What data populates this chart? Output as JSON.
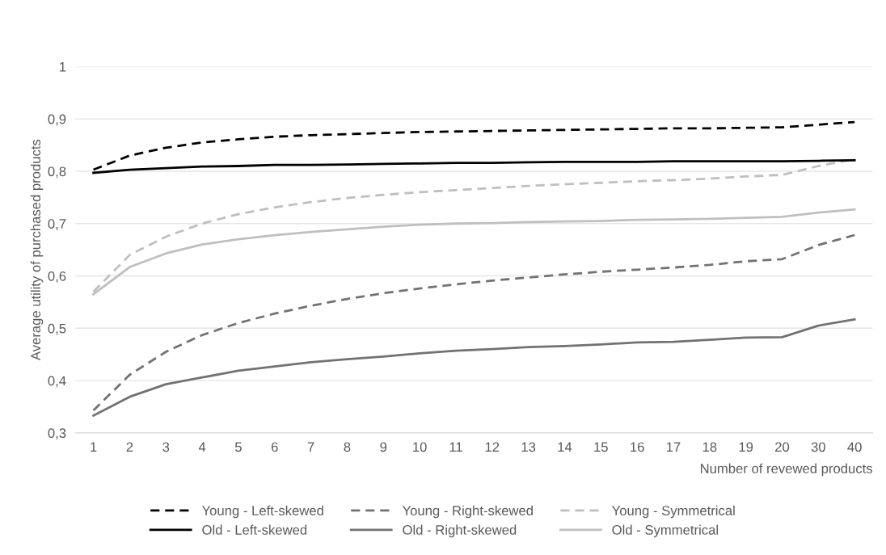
{
  "chart_data": {
    "type": "line",
    "xlabel": "Number of revewed products",
    "ylabel": "Average utility of purchased products",
    "categories": [
      "1",
      "2",
      "3",
      "4",
      "5",
      "6",
      "7",
      "8",
      "9",
      "10",
      "11",
      "12",
      "13",
      "14",
      "15",
      "16",
      "17",
      "18",
      "19",
      "20",
      "30",
      "40"
    ],
    "ylim": [
      0.3,
      1
    ],
    "yticks": [
      {
        "value": 0.3,
        "label": "0,3"
      },
      {
        "value": 0.4,
        "label": "0,4"
      },
      {
        "value": 0.5,
        "label": "0,5"
      },
      {
        "value": 0.6,
        "label": "0,6"
      },
      {
        "value": 0.7,
        "label": "0,7"
      },
      {
        "value": 0.8,
        "label": "0,8"
      },
      {
        "value": 0.9,
        "label": "0,9"
      },
      1
    ],
    "grid": "y",
    "legend": "bottom",
    "marker": "none",
    "series": [
      {
        "name": "Young - Left-skewed",
        "color": "#000000",
        "line_style": "dashed",
        "values": [
          0.803,
          0.83,
          0.845,
          0.855,
          0.861,
          0.866,
          0.869,
          0.871,
          0.873,
          0.875,
          0.876,
          0.877,
          0.878,
          0.879,
          0.88,
          0.881,
          0.882,
          0.882,
          0.883,
          0.884,
          0.889,
          0.894
        ]
      },
      {
        "name": "Young - Right-skewed",
        "color": "#767171",
        "line_style": "dashed",
        "values": [
          0.343,
          0.411,
          0.455,
          0.487,
          0.51,
          0.528,
          0.543,
          0.556,
          0.567,
          0.576,
          0.584,
          0.591,
          0.597,
          0.603,
          0.608,
          0.612,
          0.616,
          0.621,
          0.628,
          0.632,
          0.659,
          0.678
        ]
      },
      {
        "name": "Young - Symmetrical",
        "color": "#bfbfbf",
        "line_style": "dashed",
        "values": [
          0.57,
          0.64,
          0.675,
          0.7,
          0.718,
          0.731,
          0.741,
          0.749,
          0.755,
          0.76,
          0.764,
          0.768,
          0.772,
          0.775,
          0.778,
          0.781,
          0.783,
          0.786,
          0.79,
          0.793,
          0.81,
          0.823
        ]
      },
      {
        "name": "Old - Left-skewed",
        "color": "#000000",
        "line_style": "solid",
        "values": [
          0.797,
          0.803,
          0.806,
          0.809,
          0.81,
          0.812,
          0.812,
          0.813,
          0.814,
          0.815,
          0.816,
          0.816,
          0.817,
          0.818,
          0.818,
          0.818,
          0.819,
          0.819,
          0.819,
          0.819,
          0.82,
          0.821
        ]
      },
      {
        "name": "Old - Right-skewed",
        "color": "#767171",
        "line_style": "solid",
        "values": [
          0.333,
          0.369,
          0.393,
          0.406,
          0.419,
          0.427,
          0.435,
          0.441,
          0.446,
          0.452,
          0.457,
          0.46,
          0.464,
          0.466,
          0.469,
          0.473,
          0.474,
          0.478,
          0.482,
          0.483,
          0.505,
          0.517
        ]
      },
      {
        "name": "Old - Symmetrical",
        "color": "#bfbfbf",
        "line_style": "solid",
        "values": [
          0.565,
          0.617,
          0.643,
          0.66,
          0.67,
          0.678,
          0.684,
          0.689,
          0.694,
          0.698,
          0.7,
          0.701,
          0.703,
          0.704,
          0.705,
          0.707,
          0.708,
          0.709,
          0.711,
          0.713,
          0.721,
          0.727
        ]
      }
    ]
  }
}
